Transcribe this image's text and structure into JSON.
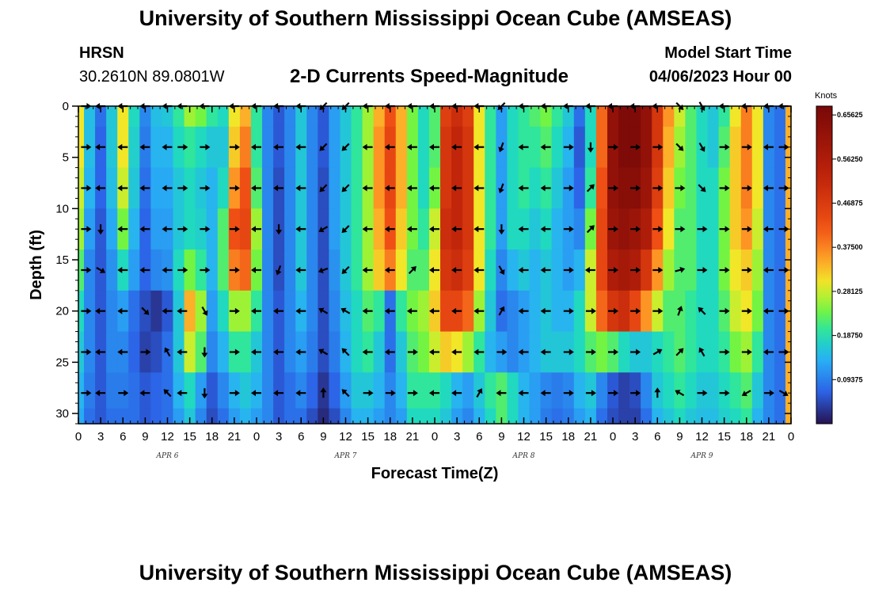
{
  "page": {
    "title": "University of Southern Mississippi Ocean Cube (AMSEAS)",
    "footer_title": "University of Southern Mississippi Ocean Cube (AMSEAS)",
    "station": "HRSN",
    "coordinates": "30.2610N  89.0801W",
    "subtitle": "2-D Currents Speed-Magnitude",
    "model_start_label": "Model Start Time",
    "model_start_value": "04/06/2023 Hour 00"
  },
  "chart_data": {
    "type": "heatmap",
    "title": "2-D Currents Speed-Magnitude",
    "xlabel": "Forecast Time(Z)",
    "ylabel": "Depth (ft)",
    "xlim": [
      0,
      96
    ],
    "ylim": [
      31,
      0
    ],
    "x_tick_hours": [
      0,
      3,
      6,
      9,
      12,
      15,
      18,
      21,
      24,
      27,
      30,
      33,
      36,
      39,
      42,
      45,
      48,
      51,
      54,
      57,
      60,
      63,
      66,
      69,
      72,
      75,
      78,
      81,
      84,
      87,
      90,
      93,
      96
    ],
    "x_tick_labels": [
      "0",
      "3",
      "6",
      "9",
      "12",
      "15",
      "18",
      "21",
      "0",
      "3",
      "6",
      "9",
      "12",
      "15",
      "18",
      "21",
      "0",
      "3",
      "6",
      "9",
      "12",
      "15",
      "18",
      "21",
      "0",
      "3",
      "6",
      "9",
      "12",
      "15",
      "18",
      "21",
      "0"
    ],
    "y_ticks": [
      0,
      5,
      10,
      15,
      20,
      25,
      30
    ],
    "y_tick_labels": [
      "0",
      "5",
      "10",
      "15",
      "20",
      "25",
      "30"
    ],
    "day_labels": [
      {
        "label": "APR 6",
        "hour": 12
      },
      {
        "label": "APR 7",
        "hour": 36
      },
      {
        "label": "APR 8",
        "hour": 60
      },
      {
        "label": "APR 9",
        "hour": 84
      }
    ],
    "colorbar": {
      "unit": "Knots",
      "min": 0,
      "max": 0.675,
      "ticks": [
        0.09375,
        0.1875,
        0.28125,
        0.375,
        0.46875,
        0.5625,
        0.65625
      ],
      "tick_labels": [
        "0.09375",
        "0.18750",
        "0.28125",
        "0.37500",
        "0.46875",
        "0.56250",
        "0.65625"
      ]
    },
    "arrow_depths_ft": [
      0,
      4,
      8,
      12,
      16,
      20,
      24,
      28
    ],
    "arrow_hours": [
      1,
      3,
      6,
      9,
      12,
      14,
      17,
      21,
      24,
      27,
      30,
      33,
      36,
      39,
      42,
      45,
      48,
      51,
      54,
      57,
      60,
      63,
      66,
      69,
      72,
      75,
      78,
      81,
      84,
      87,
      90,
      93,
      95
    ],
    "speed_field": {
      "description": "Estimated current speed (knots) sampled per forecast hour (columns, 0-96) at depths 0,4,8,12,16,20,24,28,31 ft (rows).",
      "depths_ft": [
        0,
        4,
        8,
        12,
        16,
        20,
        24,
        28,
        31
      ],
      "hours": [
        0,
        1.5,
        3,
        4.5,
        6,
        7.5,
        9,
        10.5,
        12,
        13.5,
        15,
        16.5,
        18,
        19.5,
        21,
        22.5,
        24,
        25.5,
        27,
        28.5,
        30,
        31.5,
        33,
        34.5,
        36,
        37.5,
        39,
        40.5,
        42,
        43.5,
        45,
        46.5,
        48,
        49.5,
        51,
        52.5,
        54,
        55.5,
        57,
        58.5,
        60,
        61.5,
        63,
        64.5,
        66,
        67.5,
        69,
        70.5,
        72,
        73.5,
        75,
        76.5,
        78,
        79.5,
        81,
        82.5,
        84,
        85.5,
        87,
        88.5,
        90,
        91.5,
        93,
        94.5,
        96
      ],
      "values": [
        [
          0.3,
          0.15,
          0.08,
          0.16,
          0.3,
          0.18,
          0.1,
          0.15,
          0.16,
          0.2,
          0.26,
          0.24,
          0.2,
          0.18,
          0.3,
          0.34,
          0.2,
          0.1,
          0.06,
          0.1,
          0.16,
          0.1,
          0.06,
          0.12,
          0.16,
          0.2,
          0.26,
          0.34,
          0.42,
          0.34,
          0.24,
          0.18,
          0.22,
          0.46,
          0.5,
          0.46,
          0.3,
          0.2,
          0.12,
          0.18,
          0.2,
          0.22,
          0.24,
          0.2,
          0.16,
          0.08,
          0.18,
          0.4,
          0.62,
          0.66,
          0.66,
          0.62,
          0.48,
          0.36,
          0.28,
          0.22,
          0.18,
          0.16,
          0.2,
          0.3,
          0.38,
          0.3,
          0.1,
          0.08,
          0.34
        ],
        [
          0.3,
          0.15,
          0.07,
          0.16,
          0.3,
          0.17,
          0.09,
          0.14,
          0.14,
          0.18,
          0.2,
          0.18,
          0.16,
          0.16,
          0.32,
          0.38,
          0.2,
          0.1,
          0.06,
          0.1,
          0.16,
          0.1,
          0.06,
          0.12,
          0.16,
          0.2,
          0.26,
          0.36,
          0.44,
          0.34,
          0.24,
          0.18,
          0.22,
          0.48,
          0.52,
          0.48,
          0.3,
          0.2,
          0.12,
          0.18,
          0.2,
          0.2,
          0.22,
          0.18,
          0.14,
          0.06,
          0.18,
          0.4,
          0.62,
          0.66,
          0.66,
          0.62,
          0.48,
          0.34,
          0.26,
          0.22,
          0.18,
          0.16,
          0.22,
          0.32,
          0.38,
          0.3,
          0.1,
          0.08,
          0.34
        ],
        [
          0.28,
          0.14,
          0.07,
          0.15,
          0.28,
          0.16,
          0.08,
          0.13,
          0.13,
          0.16,
          0.18,
          0.16,
          0.14,
          0.18,
          0.36,
          0.42,
          0.22,
          0.1,
          0.05,
          0.1,
          0.16,
          0.1,
          0.05,
          0.12,
          0.16,
          0.2,
          0.26,
          0.36,
          0.44,
          0.34,
          0.24,
          0.18,
          0.24,
          0.48,
          0.52,
          0.48,
          0.3,
          0.2,
          0.12,
          0.18,
          0.2,
          0.18,
          0.2,
          0.16,
          0.12,
          0.07,
          0.2,
          0.42,
          0.62,
          0.64,
          0.64,
          0.6,
          0.46,
          0.32,
          0.24,
          0.22,
          0.18,
          0.18,
          0.24,
          0.32,
          0.38,
          0.3,
          0.1,
          0.08,
          0.34
        ],
        [
          0.26,
          0.12,
          0.06,
          0.13,
          0.24,
          0.14,
          0.07,
          0.12,
          0.12,
          0.16,
          0.18,
          0.17,
          0.14,
          0.22,
          0.42,
          0.44,
          0.26,
          0.1,
          0.05,
          0.1,
          0.16,
          0.1,
          0.05,
          0.12,
          0.16,
          0.2,
          0.26,
          0.34,
          0.42,
          0.32,
          0.24,
          0.2,
          0.28,
          0.5,
          0.52,
          0.48,
          0.3,
          0.2,
          0.12,
          0.18,
          0.18,
          0.16,
          0.18,
          0.14,
          0.12,
          0.1,
          0.24,
          0.44,
          0.6,
          0.62,
          0.6,
          0.56,
          0.42,
          0.3,
          0.22,
          0.22,
          0.18,
          0.18,
          0.24,
          0.32,
          0.36,
          0.28,
          0.1,
          0.08,
          0.34
        ],
        [
          0.22,
          0.1,
          0.06,
          0.11,
          0.18,
          0.12,
          0.07,
          0.1,
          0.11,
          0.18,
          0.24,
          0.2,
          0.14,
          0.22,
          0.38,
          0.4,
          0.24,
          0.1,
          0.05,
          0.1,
          0.16,
          0.1,
          0.05,
          0.11,
          0.16,
          0.2,
          0.26,
          0.32,
          0.38,
          0.3,
          0.22,
          0.22,
          0.3,
          0.48,
          0.5,
          0.46,
          0.3,
          0.18,
          0.1,
          0.14,
          0.16,
          0.14,
          0.16,
          0.14,
          0.12,
          0.14,
          0.28,
          0.44,
          0.56,
          0.58,
          0.56,
          0.48,
          0.36,
          0.26,
          0.22,
          0.22,
          0.18,
          0.18,
          0.24,
          0.3,
          0.32,
          0.26,
          0.1,
          0.08,
          0.34
        ],
        [
          0.18,
          0.1,
          0.06,
          0.1,
          0.12,
          0.08,
          0.05,
          0.03,
          0.06,
          0.16,
          0.34,
          0.26,
          0.12,
          0.18,
          0.26,
          0.26,
          0.2,
          0.1,
          0.06,
          0.1,
          0.14,
          0.1,
          0.05,
          0.1,
          0.15,
          0.18,
          0.22,
          0.2,
          0.08,
          0.2,
          0.24,
          0.26,
          0.32,
          0.44,
          0.44,
          0.4,
          0.26,
          0.16,
          0.08,
          0.1,
          0.12,
          0.14,
          0.16,
          0.14,
          0.14,
          0.18,
          0.28,
          0.4,
          0.48,
          0.5,
          0.44,
          0.36,
          0.28,
          0.22,
          0.22,
          0.2,
          0.18,
          0.18,
          0.22,
          0.28,
          0.3,
          0.24,
          0.1,
          0.08,
          0.34
        ],
        [
          0.16,
          0.1,
          0.06,
          0.1,
          0.1,
          0.07,
          0.04,
          0.05,
          0.08,
          0.16,
          0.28,
          0.22,
          0.1,
          0.14,
          0.2,
          0.2,
          0.16,
          0.1,
          0.06,
          0.1,
          0.12,
          0.09,
          0.05,
          0.09,
          0.14,
          0.18,
          0.2,
          0.16,
          0.08,
          0.16,
          0.22,
          0.24,
          0.28,
          0.32,
          0.3,
          0.26,
          0.2,
          0.14,
          0.12,
          0.1,
          0.12,
          0.14,
          0.16,
          0.16,
          0.16,
          0.18,
          0.22,
          0.24,
          0.22,
          0.18,
          0.16,
          0.16,
          0.18,
          0.2,
          0.22,
          0.2,
          0.18,
          0.18,
          0.2,
          0.24,
          0.26,
          0.2,
          0.1,
          0.08,
          0.34
        ],
        [
          0.14,
          0.09,
          0.06,
          0.09,
          0.09,
          0.08,
          0.06,
          0.07,
          0.08,
          0.14,
          0.18,
          0.12,
          0.06,
          0.1,
          0.14,
          0.16,
          0.14,
          0.1,
          0.06,
          0.08,
          0.1,
          0.07,
          0.03,
          0.07,
          0.12,
          0.16,
          0.16,
          0.14,
          0.1,
          0.14,
          0.2,
          0.2,
          0.2,
          0.18,
          0.14,
          0.12,
          0.16,
          0.2,
          0.22,
          0.18,
          0.14,
          0.12,
          0.1,
          0.09,
          0.1,
          0.14,
          0.16,
          0.1,
          0.06,
          0.04,
          0.05,
          0.1,
          0.16,
          0.18,
          0.2,
          0.18,
          0.16,
          0.16,
          0.18,
          0.2,
          0.22,
          0.16,
          0.1,
          0.08,
          0.34
        ],
        [
          0.13,
          0.08,
          0.06,
          0.08,
          0.08,
          0.08,
          0.06,
          0.07,
          0.08,
          0.12,
          0.16,
          0.1,
          0.05,
          0.08,
          0.12,
          0.14,
          0.12,
          0.1,
          0.06,
          0.08,
          0.08,
          0.05,
          0.02,
          0.05,
          0.1,
          0.14,
          0.14,
          0.12,
          0.1,
          0.12,
          0.18,
          0.18,
          0.18,
          0.16,
          0.12,
          0.1,
          0.14,
          0.18,
          0.22,
          0.18,
          0.14,
          0.12,
          0.09,
          0.08,
          0.09,
          0.12,
          0.14,
          0.08,
          0.05,
          0.04,
          0.04,
          0.08,
          0.14,
          0.16,
          0.18,
          0.16,
          0.15,
          0.15,
          0.17,
          0.18,
          0.2,
          0.14,
          0.1,
          0.08,
          0.34
        ]
      ]
    },
    "direction_field": {
      "description": "Estimated direction each arrow points (degrees, 0 = east / right, 90 = north / up, 180 = west / left, 270 = south / down).",
      "rows_depth_ft": [
        0,
        4,
        8,
        12,
        16,
        20,
        24,
        28
      ],
      "columns_hour": [
        1,
        3,
        6,
        9,
        12,
        14,
        17,
        21,
        24,
        27,
        30,
        33,
        36,
        39,
        42,
        45,
        48,
        51,
        54,
        57,
        60,
        63,
        66,
        69,
        72,
        75,
        78,
        81,
        84,
        87,
        90,
        93,
        95
      ],
      "deg": [
        [
          0,
          180,
          180,
          180,
          180,
          180,
          180,
          180,
          180,
          180,
          180,
          225,
          225,
          180,
          180,
          180,
          180,
          180,
          180,
          225,
          180,
          180,
          180,
          180,
          180,
          180,
          180,
          315,
          300,
          180,
          180,
          180,
          180
        ],
        [
          0,
          180,
          180,
          180,
          180,
          0,
          0,
          0,
          180,
          180,
          180,
          225,
          225,
          180,
          180,
          180,
          180,
          180,
          180,
          250,
          180,
          180,
          0,
          270,
          0,
          0,
          0,
          315,
          300,
          0,
          0,
          180,
          0
        ],
        [
          0,
          180,
          180,
          180,
          180,
          0,
          0,
          0,
          180,
          180,
          180,
          225,
          225,
          180,
          180,
          180,
          180,
          180,
          180,
          250,
          180,
          180,
          0,
          45,
          0,
          0,
          0,
          0,
          315,
          0,
          0,
          180,
          0
        ],
        [
          0,
          270,
          180,
          180,
          180,
          0,
          0,
          0,
          180,
          270,
          180,
          210,
          225,
          180,
          180,
          180,
          180,
          180,
          180,
          270,
          180,
          180,
          0,
          45,
          0,
          0,
          0,
          0,
          0,
          0,
          0,
          180,
          0
        ],
        [
          0,
          330,
          180,
          180,
          180,
          0,
          0,
          0,
          180,
          250,
          180,
          200,
          225,
          180,
          180,
          45,
          180,
          180,
          180,
          300,
          180,
          180,
          0,
          180,
          0,
          0,
          0,
          15,
          0,
          0,
          0,
          180,
          0
        ],
        [
          0,
          180,
          180,
          315,
          180,
          180,
          300,
          0,
          180,
          180,
          180,
          150,
          150,
          180,
          180,
          180,
          180,
          180,
          180,
          60,
          180,
          180,
          0,
          0,
          0,
          0,
          0,
          70,
          135,
          0,
          0,
          180,
          0
        ],
        [
          0,
          180,
          180,
          0,
          120,
          180,
          270,
          0,
          180,
          180,
          180,
          150,
          135,
          180,
          180,
          0,
          180,
          180,
          180,
          0,
          180,
          180,
          0,
          0,
          0,
          0,
          30,
          45,
          120,
          0,
          0,
          180,
          0
        ],
        [
          0,
          180,
          0,
          180,
          135,
          180,
          270,
          0,
          180,
          180,
          180,
          90,
          135,
          0,
          0,
          0,
          180,
          180,
          60,
          180,
          180,
          180,
          0,
          0,
          0,
          0,
          90,
          150,
          0,
          0,
          210,
          0,
          330
        ]
      ]
    }
  }
}
